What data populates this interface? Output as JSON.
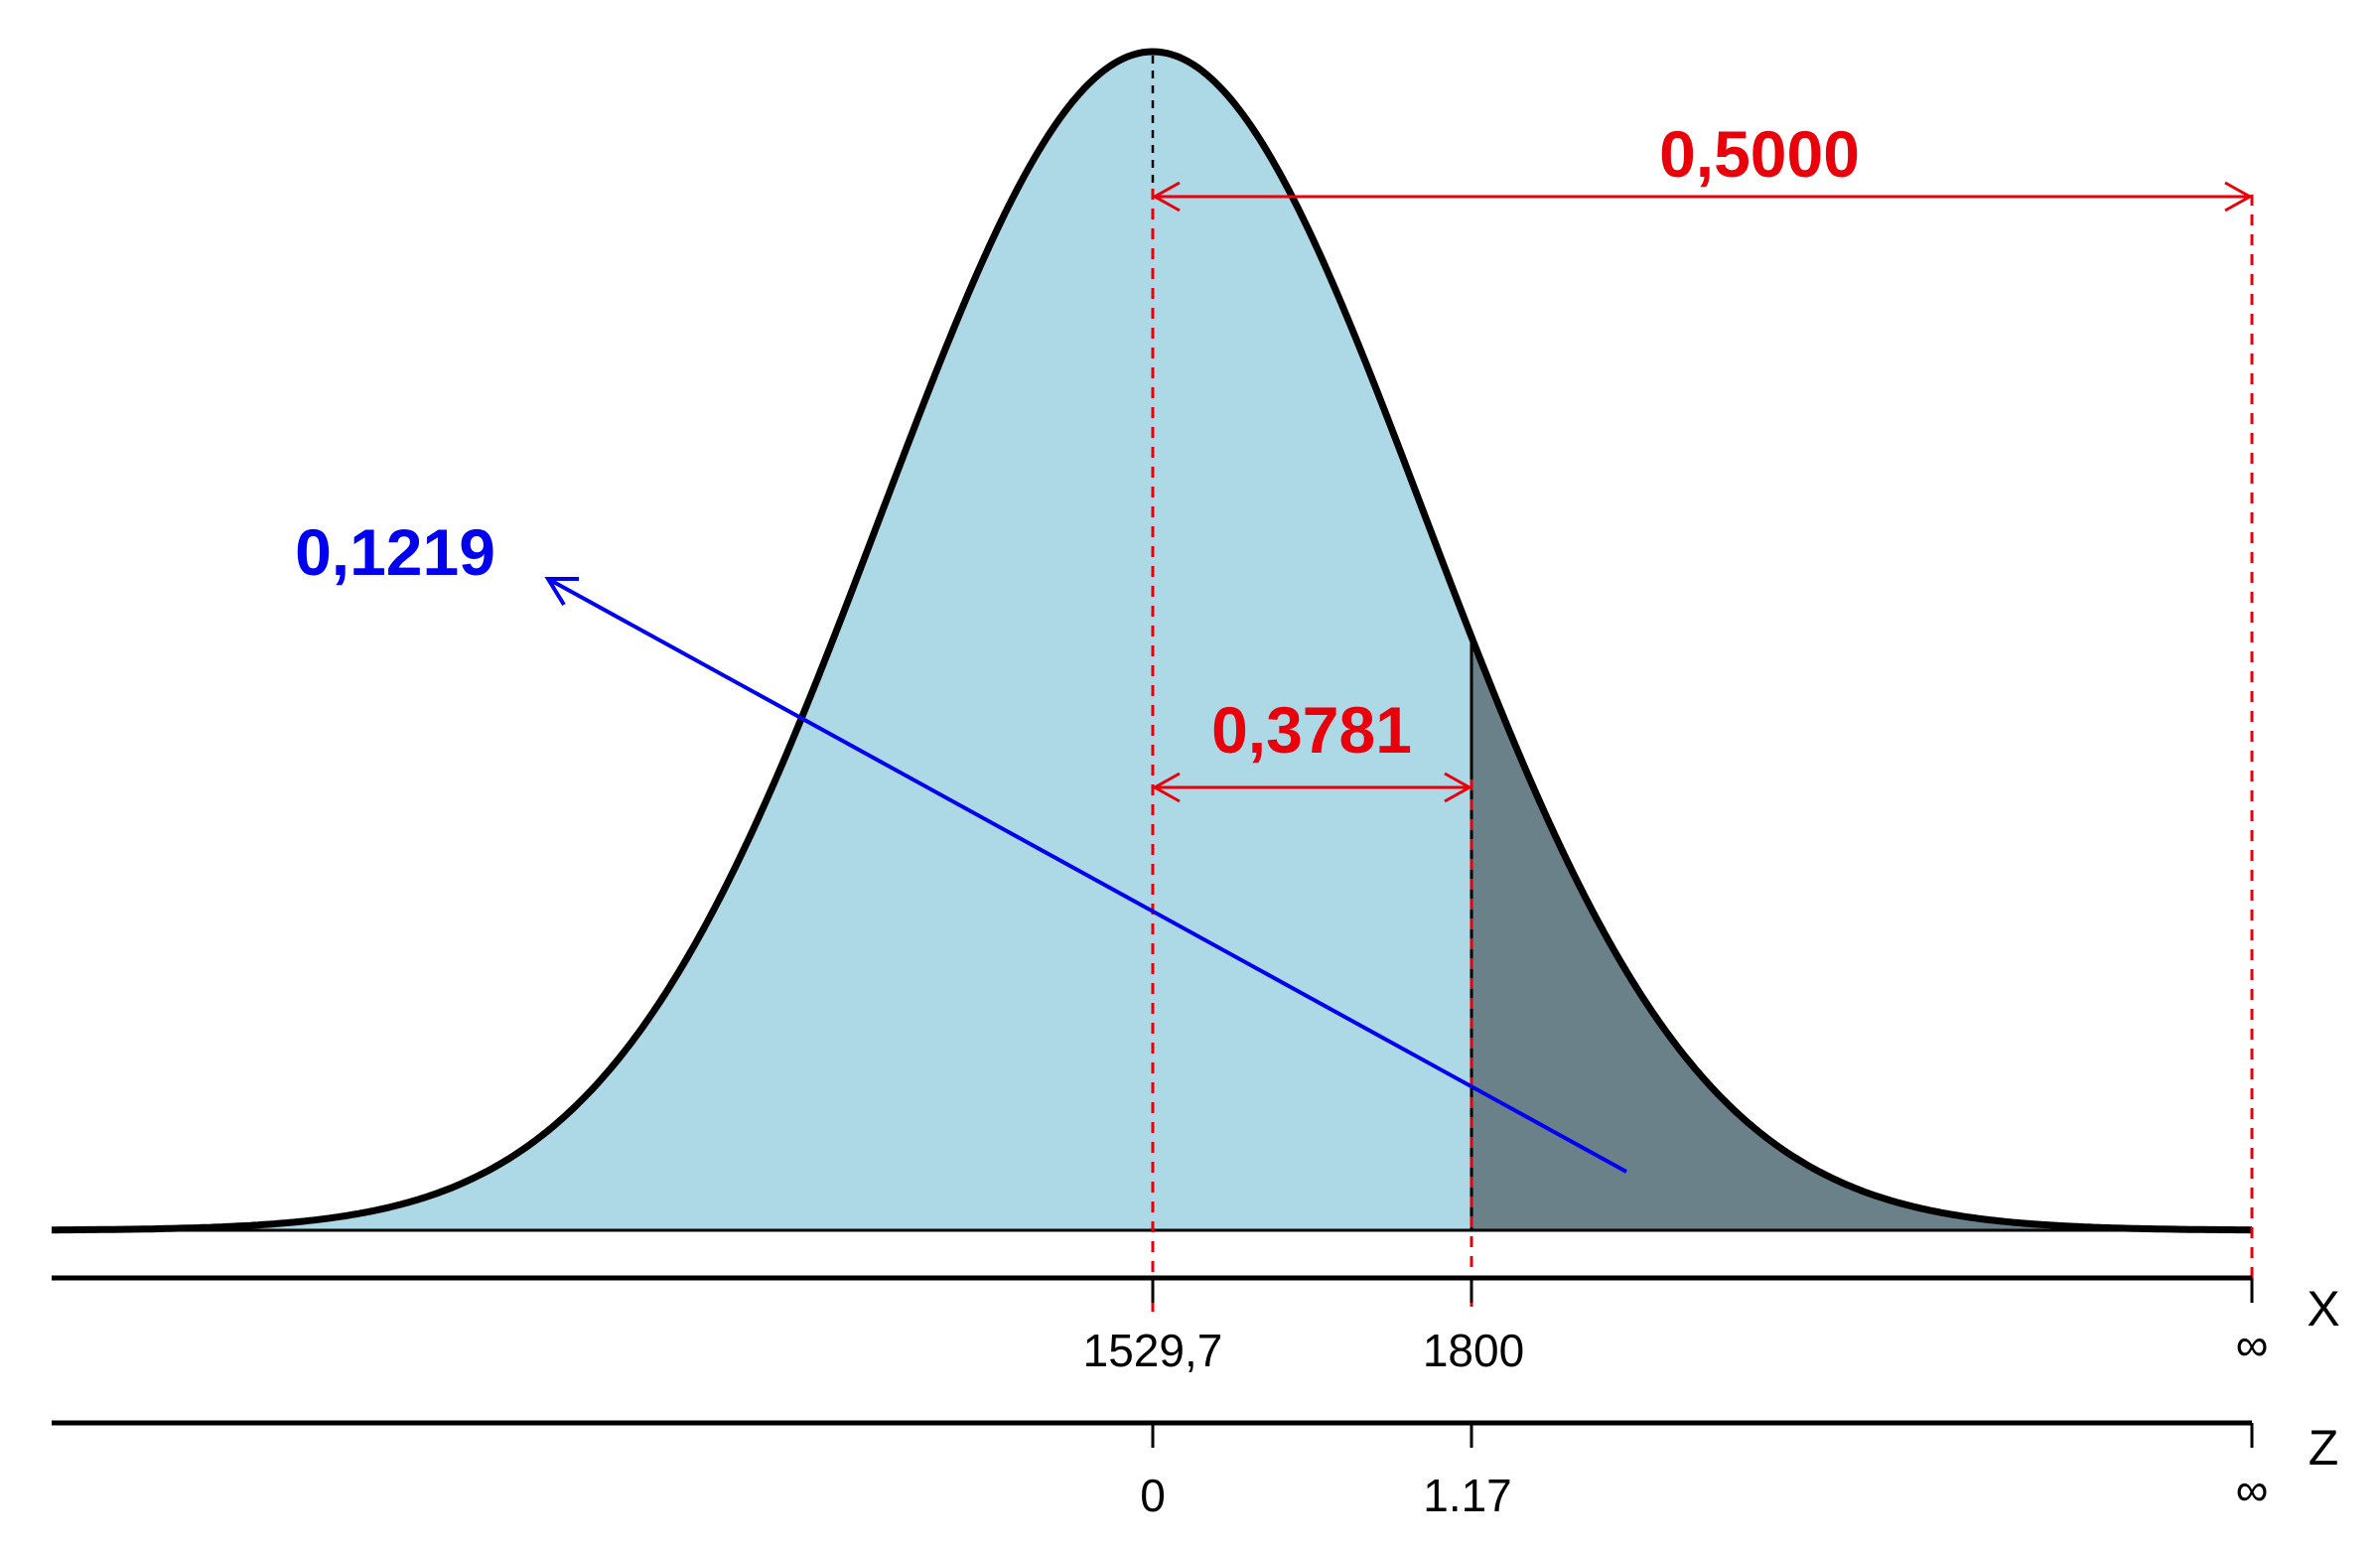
{
  "colors": {
    "body_fill": "#ADD8E6",
    "tail_fill": "#6B818A",
    "curve": "#000000",
    "guides": "#E8000B",
    "pointer": "#0000EE",
    "upper_label": "#E8000B",
    "middle_label": "#E8000B",
    "tail_label": "#0000EE"
  },
  "distribution": {
    "type": "normal",
    "mean": 1529.7,
    "cutoff": 1800,
    "cutoff_z": 1.17,
    "shaded_tail": "right"
  },
  "axes": {
    "x": {
      "name": "X",
      "ticks": [
        "1529,7",
        "1800",
        "∞"
      ]
    },
    "z": {
      "name": "Z",
      "ticks": [
        "0",
        "1.17",
        "∞"
      ]
    }
  },
  "areas": {
    "upper_half": "0,5000",
    "mean_to_cutoff": "0,3781",
    "tail": "0,1219"
  },
  "icons": {
    "infinity": "infinity-symbol",
    "arrowheads": "open-arrowhead"
  }
}
